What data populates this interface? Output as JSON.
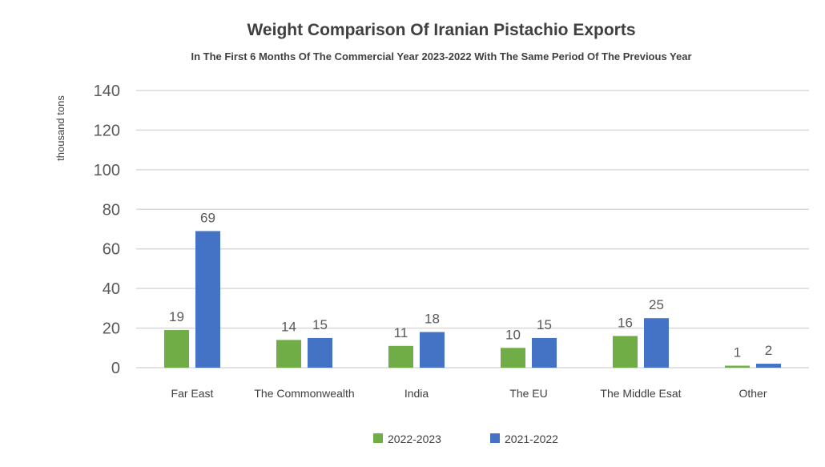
{
  "chart_data": {
    "type": "bar",
    "title": "Weight Comparison Of Iranian Pistachio Exports",
    "subtitle": "In The First 6 Months Of The Commercial Year 2023-2022 With The Same Period Of The Previous Year",
    "xlabel": "",
    "ylabel": "thousand tons",
    "ylim": [
      0,
      140
    ],
    "yticks": [
      0,
      20,
      40,
      60,
      80,
      100,
      120,
      140
    ],
    "grid": true,
    "legend_position": "bottom",
    "categories": [
      "Far East",
      "The Commonwealth",
      "India",
      "The EU",
      "The Middle Esat",
      "Other"
    ],
    "series": [
      {
        "name": "2022-2023",
        "color": "#70AD47",
        "values": [
          19,
          14,
          11,
          10,
          16,
          1
        ]
      },
      {
        "name": "2021-2022",
        "color": "#4472C4",
        "values": [
          69,
          15,
          18,
          15,
          25,
          2
        ]
      }
    ]
  }
}
